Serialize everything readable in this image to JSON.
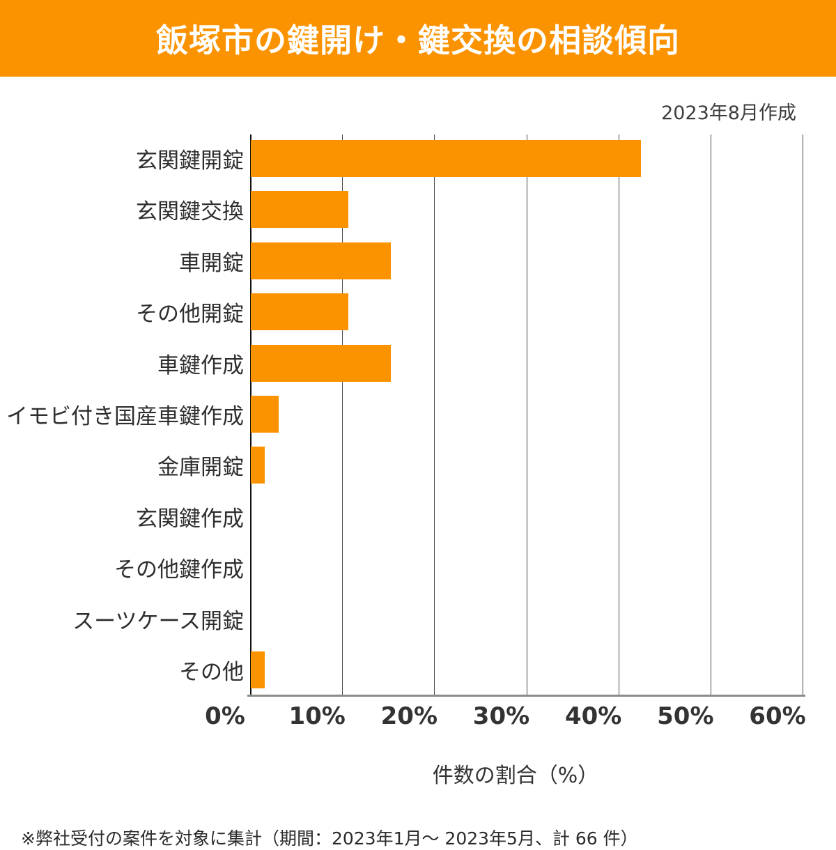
{
  "header": {
    "title": "飯塚市の鍵開け・鍵交換の相談傾向",
    "bg_color": "#fb9300",
    "text_color": "#ffffff"
  },
  "meta": {
    "created_label": "2023年8月作成"
  },
  "chart_data": {
    "type": "bar",
    "orientation": "horizontal",
    "title": "飯塚市の鍵開け・鍵交換の相談傾向",
    "categories": [
      "玄関鍵開錠",
      "玄関鍵交換",
      "車開錠",
      "その他開錠",
      "車鍵作成",
      "イモビ付き国産車鍵作成",
      "金庫開錠",
      "玄関鍵作成",
      "その他鍵作成",
      "スーツケース開錠",
      "その他"
    ],
    "values": [
      42.4,
      10.6,
      15.2,
      10.6,
      15.2,
      3.0,
      1.5,
      0,
      0,
      0,
      1.5
    ],
    "xlabel": "件数の割合（%）",
    "ylabel": "",
    "x_ticks": [
      "0%",
      "10%",
      "20%",
      "30%",
      "40%",
      "50%",
      "60%"
    ],
    "xlim": [
      0,
      60
    ],
    "grid": true,
    "legend": false,
    "bar_color": "#fb9300",
    "grid_color": "#4a4a4a",
    "tick_color": "#333333"
  },
  "footnote": "※弊社受付の案件を対象に集計（期間：2023年1月～ 2023年5月、計 66 件）"
}
